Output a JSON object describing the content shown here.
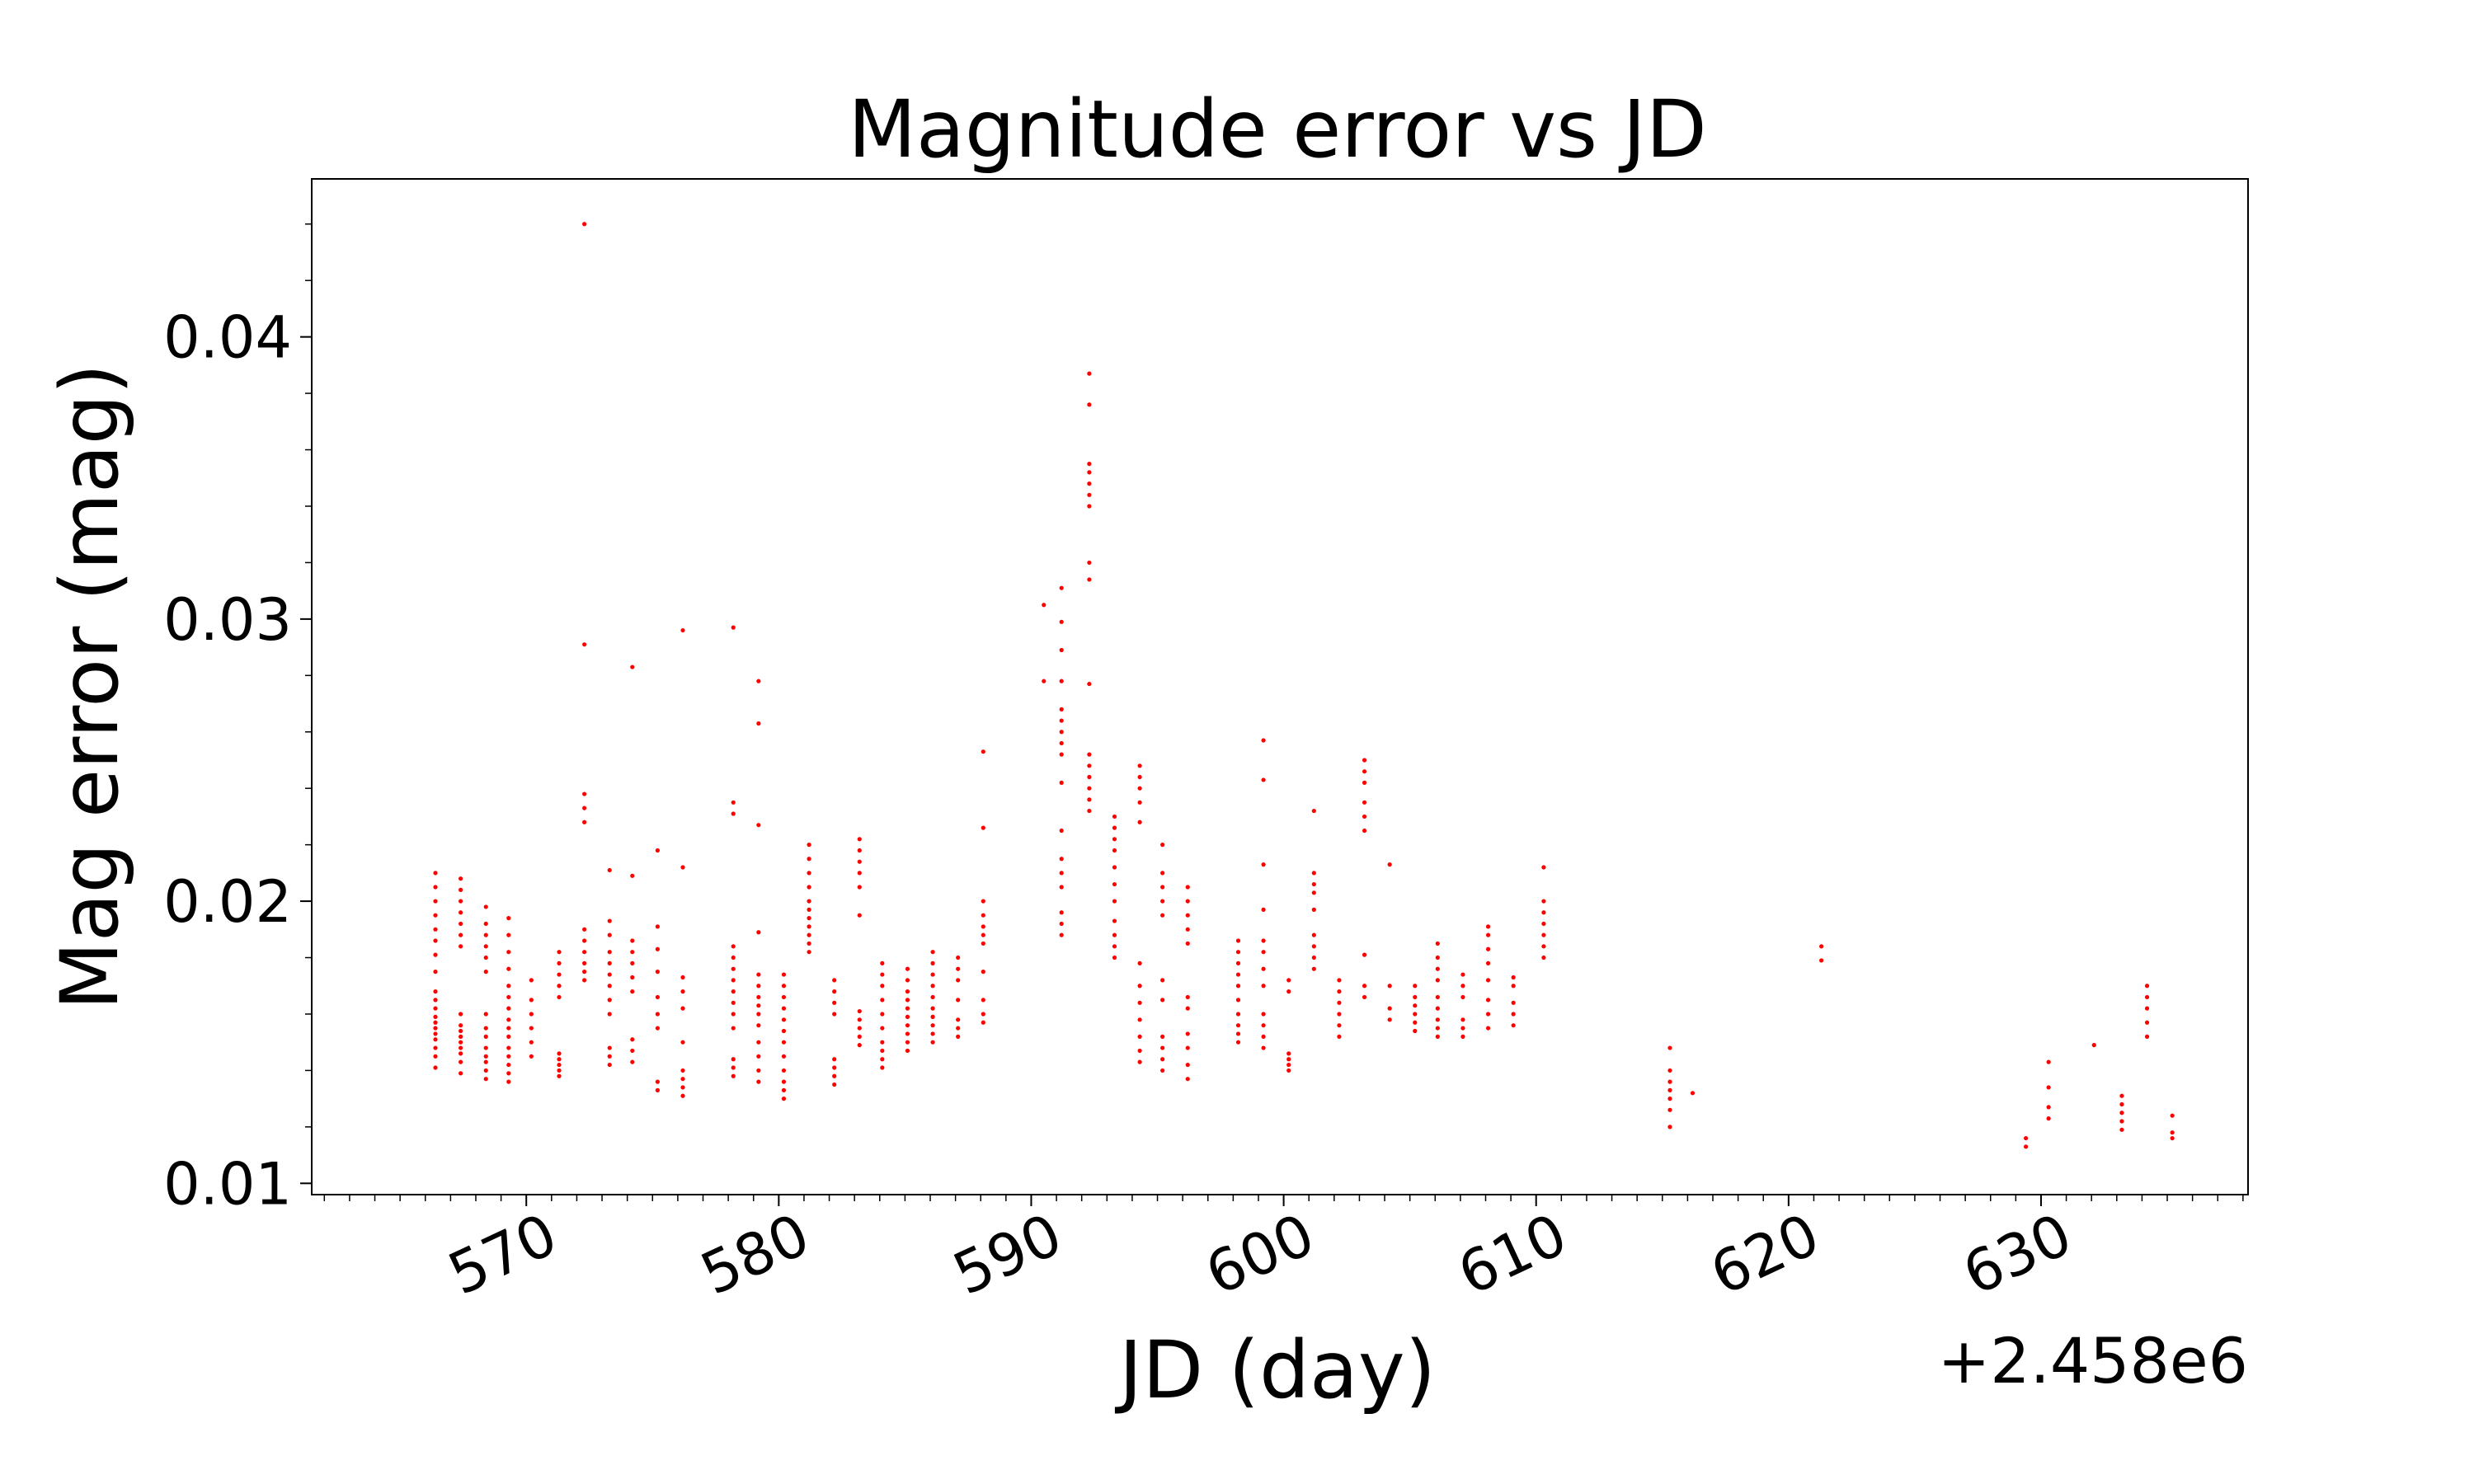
{
  "chart_data": {
    "type": "scatter",
    "title": "Magnitude error vs JD",
    "xlabel": "JD (day)",
    "ylabel": "Mag error (mag)",
    "x_offset_label": "+2.458e6",
    "xlim": [
      561.5,
      638.2
    ],
    "ylim": [
      0.0096,
      0.0456
    ],
    "xticks": [
      570,
      580,
      590,
      600,
      610,
      620,
      630
    ],
    "xtick_labels": [
      "570",
      "580",
      "590",
      "600",
      "610",
      "620",
      "630"
    ],
    "yticks": [
      0.01,
      0.02,
      0.03,
      0.04
    ],
    "ytick_labels": [
      "0.01",
      "0.02",
      "0.03",
      "0.04"
    ],
    "x_minor_step": 1,
    "y_minor_step": 0.002,
    "grid": false,
    "marker_color": "#ff0000",
    "series": [
      {
        "clusters": [
          {
            "x": 566.4,
            "y": [
              0.0141,
              0.0145,
              0.0148,
              0.0151,
              0.0153,
              0.0155,
              0.0157,
              0.0159,
              0.0162,
              0.0165,
              0.0168,
              0.0175,
              0.0181,
              0.0186,
              0.019,
              0.0195,
              0.02,
              0.0205,
              0.021
            ]
          },
          {
            "x": 567.4,
            "y": [
              0.0139,
              0.0143,
              0.0146,
              0.0148,
              0.015,
              0.0152,
              0.0154,
              0.0156,
              0.016,
              0.0184,
              0.0188,
              0.0192,
              0.0196,
              0.02,
              0.0204,
              0.0208
            ]
          },
          {
            "x": 568.4,
            "y": [
              0.0137,
              0.014,
              0.0143,
              0.0145,
              0.0148,
              0.0152,
              0.0155,
              0.016,
              0.0175,
              0.018,
              0.0184,
              0.0188,
              0.0192,
              0.0198
            ]
          },
          {
            "x": 569.3,
            "y": [
              0.0136,
              0.0139,
              0.0142,
              0.0145,
              0.0148,
              0.0152,
              0.0155,
              0.0158,
              0.0162,
              0.0166,
              0.017,
              0.0176,
              0.0182,
              0.0188,
              0.0194
            ]
          },
          {
            "x": 570.2,
            "y": [
              0.0145,
              0.015,
              0.0155,
              0.016,
              0.0165,
              0.0172
            ]
          },
          {
            "x": 571.3,
            "y": [
              0.0138,
              0.014,
              0.0142,
              0.0144,
              0.0146,
              0.0166,
              0.017,
              0.0174,
              0.0178,
              0.0182
            ]
          },
          {
            "x": 572.3,
            "y": [
              0.0172,
              0.0175,
              0.0178,
              0.0182,
              0.0186,
              0.019,
              0.0228,
              0.0233,
              0.0238,
              0.0291,
              0.044
            ]
          },
          {
            "x": 573.3,
            "y": [
              0.0142,
              0.0145,
              0.0148,
              0.016,
              0.0165,
              0.017,
              0.0174,
              0.0178,
              0.0182,
              0.0188,
              0.0193,
              0.0211
            ]
          },
          {
            "x": 574.2,
            "y": [
              0.0143,
              0.0147,
              0.0151,
              0.0168,
              0.0173,
              0.0178,
              0.0182,
              0.0186,
              0.0209,
              0.0283
            ]
          },
          {
            "x": 575.2,
            "y": [
              0.0133,
              0.0136,
              0.0155,
              0.016,
              0.0166,
              0.0175,
              0.0183,
              0.0191,
              0.0218
            ]
          },
          {
            "x": 576.2,
            "y": [
              0.0131,
              0.0134,
              0.0137,
              0.014,
              0.015,
              0.0162,
              0.0168,
              0.0173,
              0.0212,
              0.0296
            ]
          },
          {
            "x": 578.2,
            "y": [
              0.0138,
              0.0141,
              0.0144,
              0.0155,
              0.016,
              0.0164,
              0.0168,
              0.0172,
              0.0176,
              0.018,
              0.0184,
              0.0231,
              0.0235,
              0.0297
            ]
          },
          {
            "x": 579.2,
            "y": [
              0.0136,
              0.014,
              0.0145,
              0.015,
              0.0156,
              0.016,
              0.0163,
              0.0166,
              0.017,
              0.0174,
              0.0189,
              0.0227,
              0.0263,
              0.0278
            ]
          },
          {
            "x": 580.2,
            "y": [
              0.013,
              0.0133,
              0.0136,
              0.014,
              0.0145,
              0.015,
              0.0154,
              0.0158,
              0.0162,
              0.0166,
              0.017,
              0.0174
            ]
          },
          {
            "x": 581.2,
            "y": [
              0.0182,
              0.0185,
              0.0188,
              0.0191,
              0.0194,
              0.0197,
              0.02,
              0.0205,
              0.021,
              0.0215,
              0.022
            ]
          },
          {
            "x": 582.2,
            "y": [
              0.0135,
              0.0138,
              0.0141,
              0.0144,
              0.016,
              0.0164,
              0.0168,
              0.0172
            ]
          },
          {
            "x": 583.2,
            "y": [
              0.0149,
              0.0152,
              0.0155,
              0.0158,
              0.0161,
              0.0195,
              0.0205,
              0.021,
              0.0214,
              0.0218,
              0.0222
            ]
          },
          {
            "x": 584.1,
            "y": [
              0.0141,
              0.0144,
              0.0147,
              0.015,
              0.0155,
              0.016,
              0.0165,
              0.017,
              0.0174,
              0.0178
            ]
          },
          {
            "x": 585.1,
            "y": [
              0.0147,
              0.015,
              0.0153,
              0.0156,
              0.0159,
              0.0162,
              0.0165,
              0.0168,
              0.0172,
              0.0176
            ]
          },
          {
            "x": 586.1,
            "y": [
              0.015,
              0.0153,
              0.0156,
              0.0159,
              0.0162,
              0.0166,
              0.017,
              0.0174,
              0.0178,
              0.0182
            ]
          },
          {
            "x": 587.1,
            "y": [
              0.0152,
              0.0155,
              0.0158,
              0.0165,
              0.0172,
              0.0176,
              0.018
            ]
          },
          {
            "x": 588.1,
            "y": [
              0.0157,
              0.016,
              0.0165,
              0.0175,
              0.0185,
              0.0188,
              0.0191,
              0.0195,
              0.02,
              0.0226,
              0.0253
            ]
          },
          {
            "x": 590.5,
            "y": [
              0.0278,
              0.0305
            ]
          },
          {
            "x": 591.2,
            "y": [
              0.0188,
              0.0192,
              0.0196,
              0.0205,
              0.021,
              0.0215,
              0.0225,
              0.0242,
              0.0252,
              0.0256,
              0.026,
              0.0264,
              0.0268,
              0.0278,
              0.0289,
              0.0299,
              0.0311
            ]
          },
          {
            "x": 592.3,
            "y": [
              0.0232,
              0.0236,
              0.024,
              0.0244,
              0.0248,
              0.0252,
              0.0277,
              0.0314,
              0.032,
              0.034,
              0.0344,
              0.0348,
              0.0352,
              0.0355,
              0.0376,
              0.0387
            ]
          },
          {
            "x": 593.3,
            "y": [
              0.018,
              0.0184,
              0.0188,
              0.0193,
              0.02,
              0.0206,
              0.0212,
              0.0218,
              0.0222,
              0.0226,
              0.023
            ]
          },
          {
            "x": 594.3,
            "y": [
              0.0143,
              0.0147,
              0.0152,
              0.0158,
              0.0164,
              0.017,
              0.0178,
              0.0228,
              0.0235,
              0.024,
              0.0244,
              0.0248
            ]
          },
          {
            "x": 595.2,
            "y": [
              0.014,
              0.0144,
              0.0148,
              0.0152,
              0.0165,
              0.0172,
              0.0195,
              0.02,
              0.0205,
              0.021,
              0.022
            ]
          },
          {
            "x": 596.2,
            "y": [
              0.0137,
              0.0142,
              0.0148,
              0.0153,
              0.0162,
              0.0166,
              0.0185,
              0.019,
              0.0195,
              0.02,
              0.0205
            ]
          },
          {
            "x": 598.2,
            "y": [
              0.015,
              0.0153,
              0.0156,
              0.016,
              0.0165,
              0.017,
              0.0174,
              0.0178,
              0.0182,
              0.0186
            ]
          },
          {
            "x": 599.2,
            "y": [
              0.0148,
              0.0152,
              0.0156,
              0.016,
              0.017,
              0.0176,
              0.0182,
              0.0186,
              0.0197,
              0.0213,
              0.0243,
              0.0257
            ]
          },
          {
            "x": 600.2,
            "y": [
              0.014,
              0.0142,
              0.0144,
              0.0146,
              0.0168,
              0.0172
            ]
          },
          {
            "x": 601.2,
            "y": [
              0.0176,
              0.018,
              0.0184,
              0.0188,
              0.0197,
              0.0203,
              0.0206,
              0.021,
              0.0232
            ]
          },
          {
            "x": 602.2,
            "y": [
              0.0152,
              0.0156,
              0.016,
              0.0164,
              0.0168,
              0.0172
            ]
          },
          {
            "x": 603.2,
            "y": [
              0.0166,
              0.017,
              0.0181,
              0.0225,
              0.023,
              0.0235,
              0.0242,
              0.0246,
              0.025
            ]
          },
          {
            "x": 604.2,
            "y": [
              0.0158,
              0.0162,
              0.017,
              0.0213
            ]
          },
          {
            "x": 605.2,
            "y": [
              0.0154,
              0.0157,
              0.016,
              0.0163,
              0.0166,
              0.017
            ]
          },
          {
            "x": 606.1,
            "y": [
              0.0152,
              0.0155,
              0.0158,
              0.0162,
              0.0166,
              0.0172,
              0.0176,
              0.018,
              0.0185
            ]
          },
          {
            "x": 607.1,
            "y": [
              0.0152,
              0.0155,
              0.0158,
              0.0166,
              0.017,
              0.0174
            ]
          },
          {
            "x": 608.1,
            "y": [
              0.0155,
              0.016,
              0.0165,
              0.0172,
              0.0178,
              0.0183,
              0.0188,
              0.0191
            ]
          },
          {
            "x": 609.1,
            "y": [
              0.0156,
              0.016,
              0.0164,
              0.017,
              0.0173
            ]
          },
          {
            "x": 610.3,
            "y": [
              0.018,
              0.0184,
              0.0188,
              0.0192,
              0.0196,
              0.02,
              0.0212
            ]
          },
          {
            "x": 615.3,
            "y": [
              0.012,
              0.0126,
              0.013,
              0.0133,
              0.0136,
              0.014,
              0.0148
            ]
          },
          {
            "x": 616.2,
            "y": [
              0.0132
            ]
          },
          {
            "x": 621.3,
            "y": [
              0.0179,
              0.0184
            ]
          },
          {
            "x": 629.4,
            "y": [
              0.0113,
              0.0116
            ]
          },
          {
            "x": 630.3,
            "y": [
              0.0123,
              0.0127,
              0.0134,
              0.0143
            ]
          },
          {
            "x": 632.1,
            "y": [
              0.0149
            ]
          },
          {
            "x": 633.2,
            "y": [
              0.0119,
              0.0122,
              0.0125,
              0.0128,
              0.0131
            ]
          },
          {
            "x": 634.2,
            "y": [
              0.0152,
              0.0157,
              0.0162,
              0.0166,
              0.017
            ]
          },
          {
            "x": 635.2,
            "y": [
              0.0116,
              0.0118,
              0.0124
            ]
          }
        ]
      }
    ]
  }
}
